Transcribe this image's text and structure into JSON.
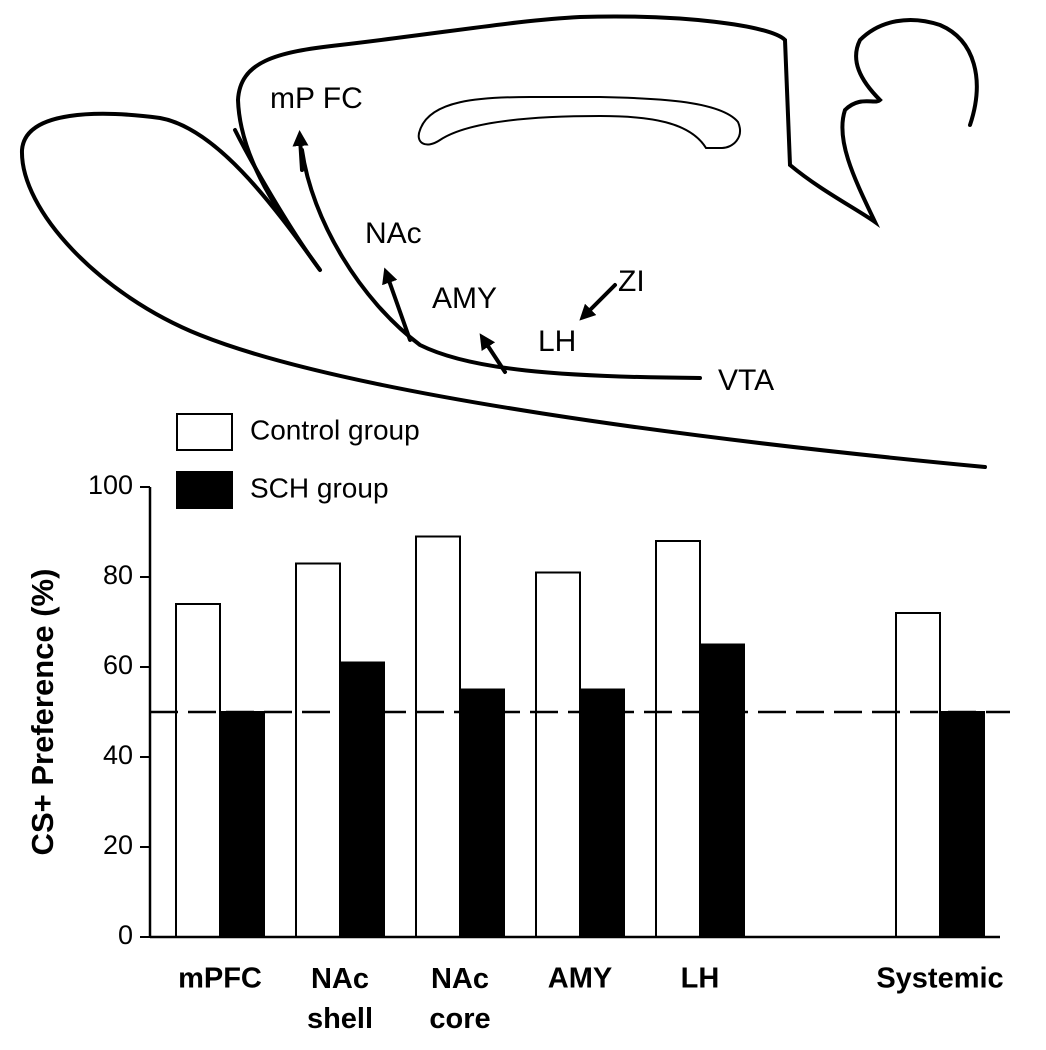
{
  "diagram": {
    "labels": [
      "mP FC",
      "NAc",
      "AMY",
      "LH",
      "ZI",
      "VTA"
    ]
  },
  "chart_data": {
    "type": "bar",
    "categories": [
      "mPFC",
      "NAc shell",
      "NAc core",
      "AMY",
      "LH",
      null,
      "Systemic"
    ],
    "series": [
      {
        "name": "Control group",
        "color": "#ffffff",
        "values": [
          74,
          83,
          89,
          81,
          88,
          null,
          72
        ]
      },
      {
        "name": "SCH group",
        "color": "#000000",
        "values": [
          50,
          61,
          55,
          55,
          65,
          null,
          50
        ]
      }
    ],
    "ylabel": "CS+ Preference (%)",
    "ylim": [
      0,
      100
    ],
    "yticks": [
      0,
      20,
      40,
      60,
      80,
      100
    ],
    "reference_line": 50,
    "grid": false
  }
}
